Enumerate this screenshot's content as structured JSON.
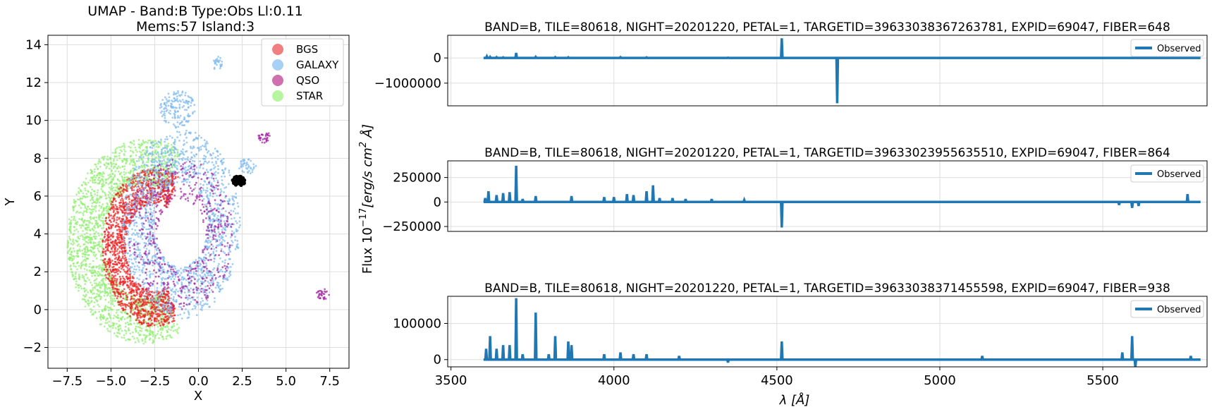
{
  "chart_data": [
    {
      "type": "scatter",
      "title_line1": "UMAP  -  Band:B Type:Obs Ll:0.11",
      "title_line2": "Mems:57 Island:3",
      "xlabel": "X",
      "ylabel": "Y",
      "xlim": [
        -8.6,
        8.6
      ],
      "ylim": [
        -3.1,
        14.5
      ],
      "xticks": [
        "−7.5",
        "−5.0",
        "−2.5",
        "0.0",
        "2.5",
        "5.0",
        "7.5"
      ],
      "xtick_values": [
        -7.5,
        -5.0,
        -2.5,
        0.0,
        2.5,
        5.0,
        7.5
      ],
      "yticks": [
        "−2",
        "0",
        "2",
        "4",
        "6",
        "8",
        "10",
        "12",
        "14"
      ],
      "ytick_values": [
        -2,
        0,
        2,
        4,
        6,
        8,
        10,
        12,
        14
      ],
      "grid": true,
      "legend_position": "top-right",
      "legend": [
        {
          "label": "BGS",
          "color": "#f08080"
        },
        {
          "label": "GALAXY",
          "color": "#a8d0f5"
        },
        {
          "label": "QSO",
          "color": "#d070b0"
        },
        {
          "label": "STAR",
          "color": "#b8f5a0"
        }
      ],
      "clusters": [
        {
          "class": "STAR",
          "color": "#90ee70",
          "shape": "crescent",
          "cx": -3.0,
          "cy": 3.6,
          "rx": 4.5,
          "ry": 5.4,
          "n": 1900
        },
        {
          "class": "BGS",
          "color": "#ee2020",
          "shape": "crescent",
          "cx": -2.5,
          "cy": 3.3,
          "rx": 3.0,
          "ry": 4.2,
          "n": 1500
        },
        {
          "class": "GALAXY",
          "color": "#7ab8f0",
          "shape": "ring",
          "cx": -1.0,
          "cy": 4.5,
          "rx": 3.4,
          "ry": 5.0,
          "n": 1500
        },
        {
          "class": "QSO",
          "color": "#a020a0",
          "shape": "ring",
          "cx": -1.0,
          "cy": 4.0,
          "rx": 3.0,
          "ry": 4.0,
          "n": 500
        },
        {
          "class": "GALAXY",
          "color": "#7ab8f0",
          "shape": "blob",
          "cx": -1.2,
          "cy": 10.6,
          "rx": 1.0,
          "ry": 1.0,
          "n": 150
        },
        {
          "class": "GALAXY",
          "color": "#7ab8f0",
          "shape": "blob",
          "cx": 1.1,
          "cy": 13.0,
          "rx": 0.3,
          "ry": 0.4,
          "n": 25
        },
        {
          "class": "QSO",
          "color": "#a020a0",
          "shape": "blob",
          "cx": 3.8,
          "cy": 9.1,
          "rx": 0.4,
          "ry": 0.3,
          "n": 30
        },
        {
          "class": "QSO",
          "color": "#a020a0",
          "shape": "blob",
          "cx": 7.1,
          "cy": 0.8,
          "rx": 0.4,
          "ry": 0.3,
          "n": 30
        },
        {
          "class": "GALAXY",
          "color": "#7ab8f0",
          "shape": "blob",
          "cx": 2.8,
          "cy": 7.6,
          "rx": 0.5,
          "ry": 0.5,
          "n": 40
        }
      ],
      "highlight": {
        "color": "#000000",
        "cx": 2.3,
        "cy": 6.8,
        "rx": 0.35,
        "ry": 0.25,
        "n": 57
      }
    },
    {
      "type": "line",
      "shared_ylabel": "Flux 10",
      "shared_ylabel_sup": "−17",
      "shared_ylabel_unit": "[erg/s cm",
      "shared_ylabel_unit_sup": "2",
      "shared_ylabel_unit_end": " Å]",
      "xlabel_prefix": "λ [",
      "xlabel_unit": "Å",
      "xlabel_suffix": "]",
      "xlim": [
        3490,
        5820
      ],
      "xticks": [
        "3500",
        "4000",
        "4500",
        "5000",
        "5500"
      ],
      "xtick_values": [
        3500,
        4000,
        4500,
        5000,
        5500
      ],
      "line_color": "#1f77b4",
      "panels": [
        {
          "title": "BAND=B, TILE=80618, NIGHT=20201220, PETAL=1, TARGETID=39633038367263781, EXPID=69047, FIBER=648",
          "legend": "Observed",
          "ylim": [
            -1900000,
            900000
          ],
          "yticks": [
            "0",
            "−1000000"
          ],
          "ytick_values": [
            0,
            -1000000
          ],
          "spikes": [
            [
              3610,
              60000
            ],
            [
              3620,
              40000
            ],
            [
              3640,
              30000
            ],
            [
              3660,
              20000
            ],
            [
              3700,
              200000
            ],
            [
              3760,
              40000
            ],
            [
              3820,
              30000
            ],
            [
              3860,
              25000
            ],
            [
              4020,
              30000
            ],
            [
              4100,
              20000
            ],
            [
              4350,
              10000
            ],
            [
              4515,
              780000
            ],
            [
              4685,
              -1800000
            ],
            [
              5600,
              15000
            ]
          ]
        },
        {
          "title": "BAND=B, TILE=80618, NIGHT=20201220, PETAL=1, TARGETID=39633023955635510, EXPID=69047, FIBER=864",
          "legend": "Observed",
          "ylim": [
            -300000,
            420000
          ],
          "yticks": [
            "250000",
            "0",
            "−250000"
          ],
          "ytick_values": [
            250000,
            0,
            -250000
          ],
          "spikes": [
            [
              3605,
              40000
            ],
            [
              3615,
              110000
            ],
            [
              3640,
              70000
            ],
            [
              3660,
              90000
            ],
            [
              3680,
              100000
            ],
            [
              3700,
              370000
            ],
            [
              3720,
              30000
            ],
            [
              3760,
              60000
            ],
            [
              3870,
              60000
            ],
            [
              3970,
              50000
            ],
            [
              4000,
              50000
            ],
            [
              4040,
              80000
            ],
            [
              4060,
              70000
            ],
            [
              4100,
              110000
            ],
            [
              4120,
              170000
            ],
            [
              4140,
              40000
            ],
            [
              4180,
              40000
            ],
            [
              4220,
              30000
            ],
            [
              4300,
              30000
            ],
            [
              4400,
              20000
            ],
            [
              4515,
              -260000
            ],
            [
              5550,
              -30000
            ],
            [
              5590,
              -60000
            ],
            [
              5610,
              -40000
            ],
            [
              5760,
              80000
            ]
          ]
        },
        {
          "title": "BAND=B, TILE=80618, NIGHT=20201220, PETAL=1, TARGETID=39633038371455598, EXPID=69047, FIBER=938",
          "legend": "Observed",
          "ylim": [
            -20000,
            175000
          ],
          "yticks": [
            "100000",
            "0"
          ],
          "ytick_values": [
            100000,
            0
          ],
          "spikes": [
            [
              3608,
              30000
            ],
            [
              3620,
              65000
            ],
            [
              3640,
              30000
            ],
            [
              3660,
              40000
            ],
            [
              3680,
              40000
            ],
            [
              3700,
              170000
            ],
            [
              3720,
              15000
            ],
            [
              3760,
              130000
            ],
            [
              3800,
              15000
            ],
            [
              3820,
              65000
            ],
            [
              3860,
              50000
            ],
            [
              3870,
              40000
            ],
            [
              3970,
              15000
            ],
            [
              4020,
              20000
            ],
            [
              4060,
              15000
            ],
            [
              4100,
              15000
            ],
            [
              4200,
              10000
            ],
            [
              4350,
              -8000
            ],
            [
              4515,
              50000
            ],
            [
              5130,
              10000
            ],
            [
              5560,
              20000
            ],
            [
              5590,
              65000
            ],
            [
              5600,
              -20000
            ],
            [
              5770,
              10000
            ]
          ]
        }
      ]
    }
  ]
}
